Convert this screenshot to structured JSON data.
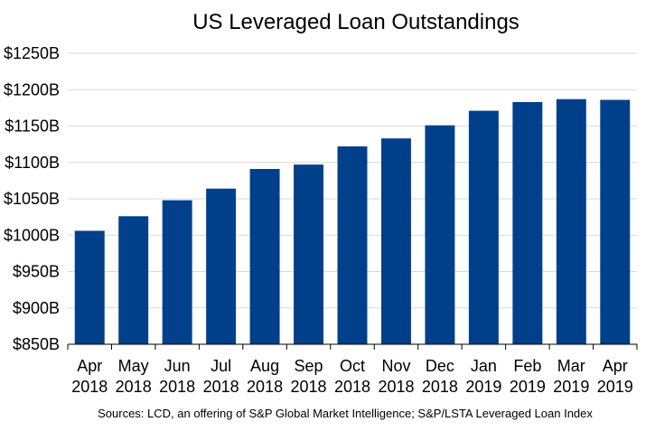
{
  "chart_data": {
    "type": "bar",
    "title": "US Leveraged Loan Outstandings",
    "xlabel": "",
    "ylabel": "",
    "categories": [
      [
        "Apr",
        "2018"
      ],
      [
        "May",
        "2018"
      ],
      [
        "Jun",
        "2018"
      ],
      [
        "Jul",
        "2018"
      ],
      [
        "Aug",
        "2018"
      ],
      [
        "Sep",
        "2018"
      ],
      [
        "Oct",
        "2018"
      ],
      [
        "Nov",
        "2018"
      ],
      [
        "Dec",
        "2018"
      ],
      [
        "Jan",
        "2019"
      ],
      [
        "Feb",
        "2019"
      ],
      [
        "Mar",
        "2019"
      ],
      [
        "Apr",
        "2019"
      ]
    ],
    "values": [
      1006,
      1026,
      1048,
      1064,
      1091,
      1097,
      1122,
      1133,
      1151,
      1171,
      1183,
      1187,
      1186
    ],
    "unit": "$B",
    "ylim": [
      850,
      1250
    ],
    "yticks": [
      850,
      900,
      950,
      1000,
      1050,
      1100,
      1150,
      1200,
      1250
    ],
    "ytick_labels": [
      "$850B",
      "$900B",
      "$950B",
      "$1000B",
      "$1050B",
      "$1100B",
      "$1150B",
      "$1200B",
      "$1250B"
    ],
    "grid": true,
    "legend": "none",
    "bar_color": "#003f8a",
    "grid_color": "#d9d9d9",
    "axis_color": "#000000"
  },
  "source_note": "Sources: LCD, an offering of S&P Global Market Intelligence; S&P/LSTA Leveraged Loan Index"
}
